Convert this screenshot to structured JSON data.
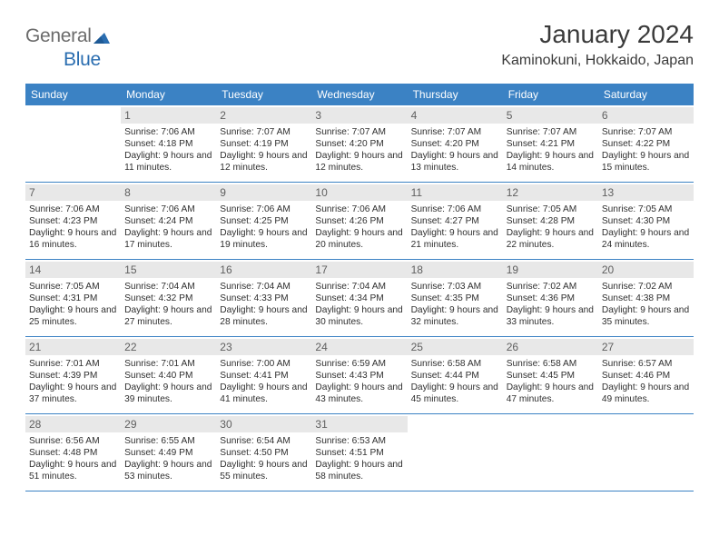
{
  "logo": {
    "text1": "General",
    "text2": "Blue"
  },
  "title": "January 2024",
  "location": "Kaminokuni, Hokkaido, Japan",
  "weekdays": [
    "Sunday",
    "Monday",
    "Tuesday",
    "Wednesday",
    "Thursday",
    "Friday",
    "Saturday"
  ],
  "colors": {
    "header_bg": "#3b82c4",
    "daynum_bg": "#e8e8e8",
    "text": "#323232",
    "logo_gray": "#6b6b6b",
    "logo_blue": "#2a6db0"
  },
  "weeks": [
    [
      null,
      {
        "n": "1",
        "sr": "7:06 AM",
        "ss": "4:18 PM",
        "dl": "9 hours and 11 minutes."
      },
      {
        "n": "2",
        "sr": "7:07 AM",
        "ss": "4:19 PM",
        "dl": "9 hours and 12 minutes."
      },
      {
        "n": "3",
        "sr": "7:07 AM",
        "ss": "4:20 PM",
        "dl": "9 hours and 12 minutes."
      },
      {
        "n": "4",
        "sr": "7:07 AM",
        "ss": "4:20 PM",
        "dl": "9 hours and 13 minutes."
      },
      {
        "n": "5",
        "sr": "7:07 AM",
        "ss": "4:21 PM",
        "dl": "9 hours and 14 minutes."
      },
      {
        "n": "6",
        "sr": "7:07 AM",
        "ss": "4:22 PM",
        "dl": "9 hours and 15 minutes."
      }
    ],
    [
      {
        "n": "7",
        "sr": "7:06 AM",
        "ss": "4:23 PM",
        "dl": "9 hours and 16 minutes."
      },
      {
        "n": "8",
        "sr": "7:06 AM",
        "ss": "4:24 PM",
        "dl": "9 hours and 17 minutes."
      },
      {
        "n": "9",
        "sr": "7:06 AM",
        "ss": "4:25 PM",
        "dl": "9 hours and 19 minutes."
      },
      {
        "n": "10",
        "sr": "7:06 AM",
        "ss": "4:26 PM",
        "dl": "9 hours and 20 minutes."
      },
      {
        "n": "11",
        "sr": "7:06 AM",
        "ss": "4:27 PM",
        "dl": "9 hours and 21 minutes."
      },
      {
        "n": "12",
        "sr": "7:05 AM",
        "ss": "4:28 PM",
        "dl": "9 hours and 22 minutes."
      },
      {
        "n": "13",
        "sr": "7:05 AM",
        "ss": "4:30 PM",
        "dl": "9 hours and 24 minutes."
      }
    ],
    [
      {
        "n": "14",
        "sr": "7:05 AM",
        "ss": "4:31 PM",
        "dl": "9 hours and 25 minutes."
      },
      {
        "n": "15",
        "sr": "7:04 AM",
        "ss": "4:32 PM",
        "dl": "9 hours and 27 minutes."
      },
      {
        "n": "16",
        "sr": "7:04 AM",
        "ss": "4:33 PM",
        "dl": "9 hours and 28 minutes."
      },
      {
        "n": "17",
        "sr": "7:04 AM",
        "ss": "4:34 PM",
        "dl": "9 hours and 30 minutes."
      },
      {
        "n": "18",
        "sr": "7:03 AM",
        "ss": "4:35 PM",
        "dl": "9 hours and 32 minutes."
      },
      {
        "n": "19",
        "sr": "7:02 AM",
        "ss": "4:36 PM",
        "dl": "9 hours and 33 minutes."
      },
      {
        "n": "20",
        "sr": "7:02 AM",
        "ss": "4:38 PM",
        "dl": "9 hours and 35 minutes."
      }
    ],
    [
      {
        "n": "21",
        "sr": "7:01 AM",
        "ss": "4:39 PM",
        "dl": "9 hours and 37 minutes."
      },
      {
        "n": "22",
        "sr": "7:01 AM",
        "ss": "4:40 PM",
        "dl": "9 hours and 39 minutes."
      },
      {
        "n": "23",
        "sr": "7:00 AM",
        "ss": "4:41 PM",
        "dl": "9 hours and 41 minutes."
      },
      {
        "n": "24",
        "sr": "6:59 AM",
        "ss": "4:43 PM",
        "dl": "9 hours and 43 minutes."
      },
      {
        "n": "25",
        "sr": "6:58 AM",
        "ss": "4:44 PM",
        "dl": "9 hours and 45 minutes."
      },
      {
        "n": "26",
        "sr": "6:58 AM",
        "ss": "4:45 PM",
        "dl": "9 hours and 47 minutes."
      },
      {
        "n": "27",
        "sr": "6:57 AM",
        "ss": "4:46 PM",
        "dl": "9 hours and 49 minutes."
      }
    ],
    [
      {
        "n": "28",
        "sr": "6:56 AM",
        "ss": "4:48 PM",
        "dl": "9 hours and 51 minutes."
      },
      {
        "n": "29",
        "sr": "6:55 AM",
        "ss": "4:49 PM",
        "dl": "9 hours and 53 minutes."
      },
      {
        "n": "30",
        "sr": "6:54 AM",
        "ss": "4:50 PM",
        "dl": "9 hours and 55 minutes."
      },
      {
        "n": "31",
        "sr": "6:53 AM",
        "ss": "4:51 PM",
        "dl": "9 hours and 58 minutes."
      },
      null,
      null,
      null
    ]
  ],
  "labels": {
    "sunrise": "Sunrise:",
    "sunset": "Sunset:",
    "daylight": "Daylight:"
  }
}
